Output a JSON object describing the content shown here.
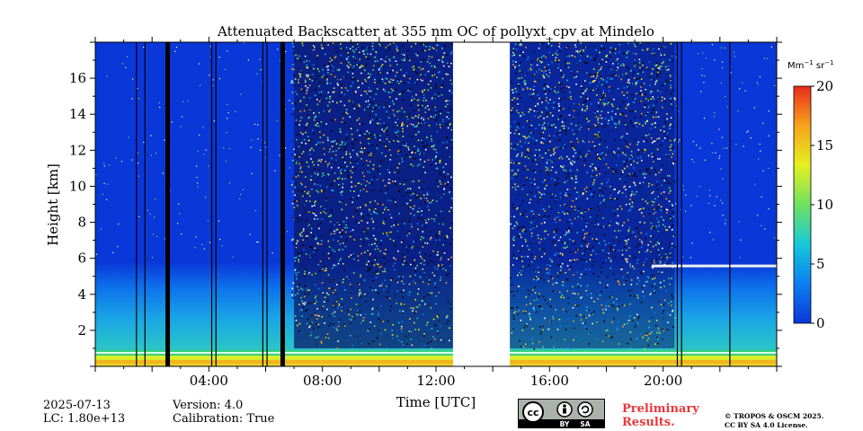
{
  "header": {
    "title": "Attenuated Backscatter at 355 nm OC of pollyxt_cpv at Mindelo"
  },
  "footer": {
    "date": "2025-07-13",
    "lc": "LC: 1.80e+13",
    "version": "Version: 4.0",
    "calibration": "Calibration: True",
    "preliminary_line1": "Preliminary",
    "preliminary_line2": "Results.",
    "copyright_line1": "© TROPOS & OSCM 2025.",
    "copyright_line2": "CC BY SA 4.0 License.",
    "cc_badge": {
      "cc": "cc",
      "by": "BY",
      "sa": "SA"
    }
  },
  "chart_data": {
    "type": "heatmap",
    "title": "Attenuated Backscatter at 355 nm OC of pollyxt_cpv at Mindelo",
    "xlabel": "Time [UTC]",
    "ylabel": "Height [km]",
    "x_range_hours": [
      0,
      24
    ],
    "y_range_km": [
      0,
      18
    ],
    "x_ticks": [
      "04:00",
      "08:00",
      "12:00",
      "16:00",
      "20:00"
    ],
    "x_tick_hours": [
      4,
      8,
      12,
      16,
      20
    ],
    "y_ticks": [
      "2",
      "4",
      "6",
      "8",
      "10",
      "12",
      "14",
      "16"
    ],
    "y_tick_values": [
      2,
      4,
      6,
      8,
      10,
      12,
      14,
      16
    ],
    "colorbar": {
      "label_base": "Mm",
      "label_exp1": "−1",
      "label_mid": " sr",
      "label_exp2": "−1",
      "range": [
        0,
        20
      ],
      "ticks": [
        "0",
        "5",
        "10",
        "15",
        "20"
      ],
      "colors": [
        "#0a37d8",
        "#0c7ff0",
        "#16c9d8",
        "#6fe060",
        "#e6f020",
        "#f7a31c",
        "#e82b1b"
      ]
    },
    "data_gaps_hours": [
      [
        12.6,
        14.6
      ]
    ],
    "dropout_lines_hours": [
      1.45,
      1.75,
      2.55,
      2.6,
      4.1,
      4.25,
      5.9,
      6.05,
      6.6,
      6.65,
      20.5,
      20.65,
      22.35
    ],
    "layers": [
      {
        "name_hidden": "boundary",
        "top_km": 0.9
      },
      {
        "name_hidden": "aerosol",
        "top_km": 5.8
      },
      {
        "name_hidden": "cloud",
        "height_km": 5.6,
        "from_hours": 19.6,
        "to_hours": 24
      }
    ]
  }
}
